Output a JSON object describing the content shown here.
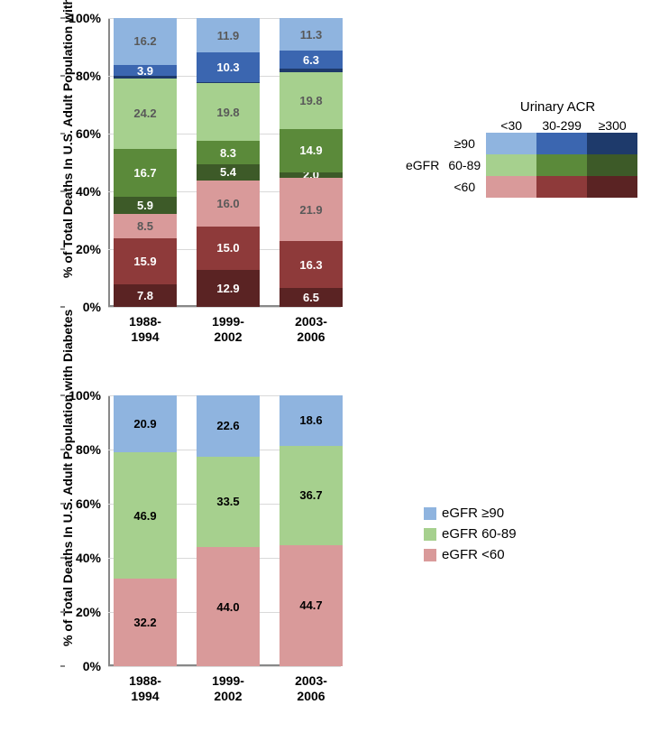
{
  "colors": {
    "egfr90_acr30": "#8fb4df",
    "egfr90_acr299": "#3b66b0",
    "egfr90_acr300": "#1e3a6b",
    "egfr6089_acr30": "#a6d08e",
    "egfr6089_acr299": "#5b8a3a",
    "egfr6089_acr300": "#3d5a28",
    "egfr60_acr30": "#d99a9a",
    "egfr60_acr299": "#8e3a3a",
    "egfr60_acr300": "#5a2323",
    "grid": "#d9d9d9",
    "bg": "#ffffff"
  },
  "axis": {
    "y_label": "% of Total Deaths In U.S. Adult Population with Diabetes",
    "y_ticks": [
      "0%",
      "20%",
      "40%",
      "60%",
      "80%",
      "100%"
    ],
    "y_max": 100,
    "y_step": 20
  },
  "x_categories": [
    "1988-\n1994",
    "1999-\n2002",
    "2003-\n2006"
  ],
  "chart1": {
    "type": "stacked-bar",
    "value_label_color_light": "#ffffff",
    "value_label_color_dark": "#595959",
    "series_order": [
      "egfr60_acr300",
      "egfr60_acr299",
      "egfr60_acr30",
      "egfr6089_acr300",
      "egfr6089_acr299",
      "egfr6089_acr30",
      "egfr90_acr300",
      "egfr90_acr299",
      "egfr90_acr30"
    ],
    "bars": [
      {
        "values": {
          "egfr60_acr300": 7.8,
          "egfr60_acr299": 15.9,
          "egfr60_acr30": 8.5,
          "egfr6089_acr300": 5.9,
          "egfr6089_acr299": 16.7,
          "egfr6089_acr30": 24.2,
          "egfr90_acr300": 0.9,
          "egfr90_acr299": 3.9,
          "egfr90_acr30": 16.2
        },
        "labels": {
          "egfr60_acr300": "7.8",
          "egfr60_acr299": "15.9",
          "egfr60_acr30": "8.5",
          "egfr6089_acr300": "5.9",
          "egfr6089_acr299": "16.7",
          "egfr6089_acr30": "24.2",
          "egfr90_acr300": "",
          "egfr90_acr299": "3.9",
          "egfr90_acr30": "16.2"
        }
      },
      {
        "values": {
          "egfr60_acr300": 12.9,
          "egfr60_acr299": 15.0,
          "egfr60_acr30": 16.0,
          "egfr6089_acr300": 5.4,
          "egfr6089_acr299": 8.3,
          "egfr6089_acr30": 19.8,
          "egfr90_acr300": 0.4,
          "egfr90_acr299": 10.3,
          "egfr90_acr30": 11.9
        },
        "labels": {
          "egfr60_acr300": "12.9",
          "egfr60_acr299": "15.0",
          "egfr60_acr30": "16.0",
          "egfr6089_acr300": "5.4",
          "egfr6089_acr299": "8.3",
          "egfr6089_acr30": "19.8",
          "egfr90_acr300": "",
          "egfr90_acr299": "10.3",
          "egfr90_acr30": "11.9"
        }
      },
      {
        "values": {
          "egfr60_acr300": 6.5,
          "egfr60_acr299": 16.3,
          "egfr60_acr30": 21.9,
          "egfr6089_acr300": 2.0,
          "egfr6089_acr299": 14.9,
          "egfr6089_acr30": 19.8,
          "egfr90_acr300": 1.0,
          "egfr90_acr299": 6.3,
          "egfr90_acr30": 11.3
        },
        "labels": {
          "egfr60_acr300": "6.5",
          "egfr60_acr299": "16.3",
          "egfr60_acr30": "21.9",
          "egfr6089_acr300": "2.0",
          "egfr6089_acr299": "14.9",
          "egfr6089_acr30": "19.8",
          "egfr90_acr300": "",
          "egfr90_acr299": "6.3",
          "egfr90_acr30": "11.3"
        }
      }
    ]
  },
  "chart2": {
    "type": "stacked-bar",
    "value_label_color": "#000000",
    "series_order": [
      "egfr60",
      "egfr6089",
      "egfr90"
    ],
    "series_colors": {
      "egfr60": "#d99a9a",
      "egfr6089": "#a6d08e",
      "egfr90": "#8fb4df"
    },
    "bars": [
      {
        "values": {
          "egfr60": 32.2,
          "egfr6089": 46.9,
          "egfr90": 20.9
        }
      },
      {
        "values": {
          "egfr60": 44.0,
          "egfr6089": 33.5,
          "egfr90": 22.6
        }
      },
      {
        "values": {
          "egfr60": 44.7,
          "egfr6089": 36.7,
          "egfr90": 18.6
        }
      }
    ]
  },
  "legend_matrix": {
    "title": "Urinary ACR",
    "col_headers": [
      "<30",
      "30-299",
      "≥300"
    ],
    "row_label_group": "eGFR",
    "row_headers": [
      "≥90",
      "60-89",
      "<60"
    ],
    "rows_keys": [
      [
        "egfr90_acr30",
        "egfr90_acr299",
        "egfr90_acr300"
      ],
      [
        "egfr6089_acr30",
        "egfr6089_acr299",
        "egfr6089_acr300"
      ],
      [
        "egfr60_acr30",
        "egfr60_acr299",
        "egfr60_acr300"
      ]
    ]
  },
  "legend_simple": {
    "items": [
      {
        "key": "egfr90",
        "label": "eGFR ≥90",
        "color": "#8fb4df"
      },
      {
        "key": "egfr6089",
        "label": "eGFR 60-89",
        "color": "#a6d08e"
      },
      {
        "key": "egfr60",
        "label": "eGFR <60",
        "color": "#d99a9a"
      }
    ]
  }
}
